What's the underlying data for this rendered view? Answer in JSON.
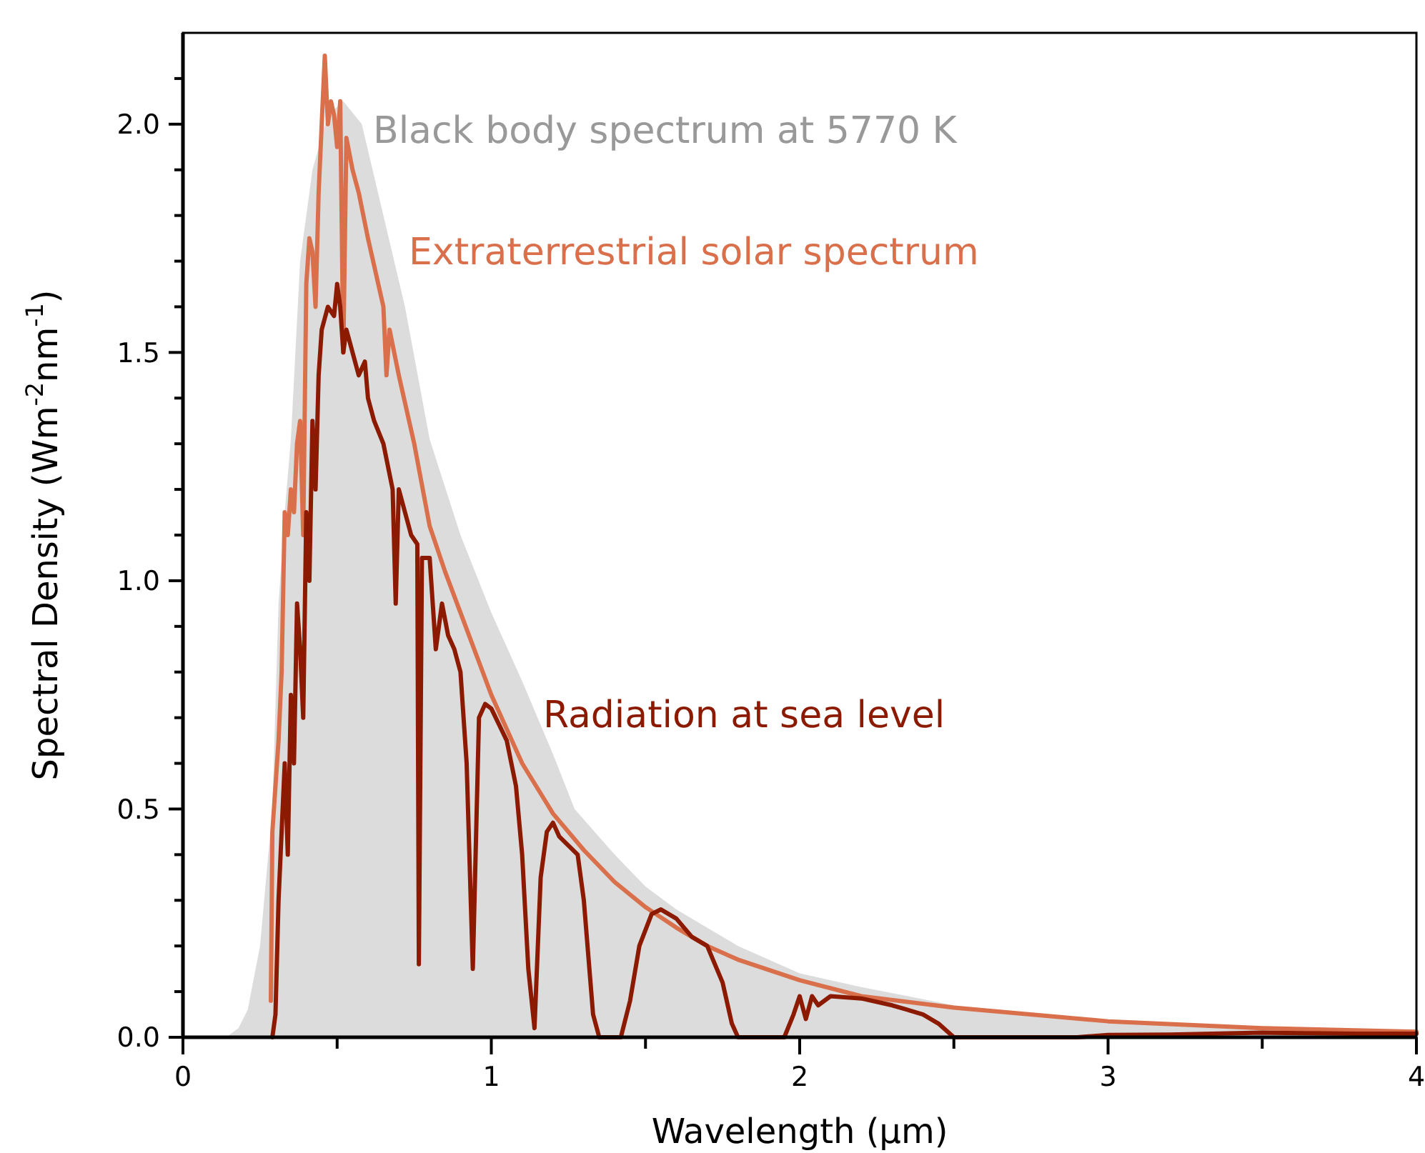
{
  "chart_data": {
    "type": "line",
    "xlabel": "Wavelength (µm)",
    "ylabel": "Spectral Density (Wm$^{-2}$nm$^{-1}$)",
    "xlim": [
      0,
      4
    ],
    "ylim": [
      0,
      2.2
    ],
    "xticks": [
      0,
      {
        "value": 0.5,
        "label": null
      },
      1,
      {
        "value": 1.5,
        "label": null
      },
      2,
      {
        "value": 2.5,
        "label": null
      },
      3,
      {
        "value": 3.5,
        "label": null
      },
      4
    ],
    "yticks": [
      {
        "value": 0,
        "label": "0.0"
      },
      {
        "value": 0.1,
        "label": null
      },
      {
        "value": 0.2,
        "label": null
      },
      {
        "value": 0.3,
        "label": null
      },
      {
        "value": 0.4,
        "label": null
      },
      {
        "value": 0.5,
        "label": "0.5"
      },
      {
        "value": 0.6,
        "label": null
      },
      {
        "value": 0.7,
        "label": null
      },
      {
        "value": 0.8,
        "label": null
      },
      {
        "value": 0.9,
        "label": null
      },
      {
        "value": 1,
        "label": "1.0"
      },
      {
        "value": 1.1,
        "label": null
      },
      {
        "value": 1.2,
        "label": null
      },
      {
        "value": 1.3,
        "label": null
      },
      {
        "value": 1.4,
        "label": null
      },
      {
        "value": 1.5,
        "label": "1.5"
      },
      {
        "value": 1.6,
        "label": null
      },
      {
        "value": 1.7,
        "label": null
      },
      {
        "value": 1.8,
        "label": null
      },
      {
        "value": 1.9,
        "label": null
      },
      {
        "value": 2,
        "label": "2.0"
      },
      {
        "value": 2.1,
        "label": null
      }
    ],
    "grid": false,
    "legend": false,
    "marker": "none",
    "line_style": "solid",
    "series": [
      {
        "name": "Black body spectrum at 5770 K",
        "type": "area",
        "color": "#dcdcdc",
        "x": [
          0.14,
          0.18,
          0.21,
          0.25,
          0.29,
          0.31,
          0.33,
          0.35,
          0.38,
          0.42,
          0.47,
          0.52,
          0.58,
          0.65,
          0.72,
          0.8,
          0.9,
          1.0,
          1.1,
          1.2,
          1.27,
          1.4,
          1.5,
          1.6,
          1.8,
          2.0,
          2.2,
          2.5,
          3.0,
          3.5,
          4.0
        ],
        "values": [
          0,
          0.02,
          0.06,
          0.2,
          0.5,
          0.95,
          1.15,
          1.31,
          1.7,
          1.9,
          2.02,
          2.05,
          2.0,
          1.8,
          1.6,
          1.31,
          1.1,
          0.93,
          0.78,
          0.62,
          0.5,
          0.4,
          0.33,
          0.28,
          0.2,
          0.14,
          0.11,
          0.07,
          0.035,
          0.02,
          0.012
        ]
      },
      {
        "name": "Extraterrestrial solar spectrum",
        "color": "#d9704b",
        "x": [
          0.285,
          0.29,
          0.3,
          0.31,
          0.32,
          0.33,
          0.34,
          0.35,
          0.36,
          0.37,
          0.38,
          0.39,
          0.4,
          0.41,
          0.42,
          0.43,
          0.44,
          0.45,
          0.46,
          0.47,
          0.48,
          0.49,
          0.5,
          0.51,
          0.52,
          0.53,
          0.55,
          0.57,
          0.6,
          0.65,
          0.66,
          0.67,
          0.7,
          0.75,
          0.8,
          0.85,
          0.9,
          1.0,
          1.1,
          1.2,
          1.3,
          1.4,
          1.5,
          1.6,
          1.7,
          1.8,
          2.0,
          2.2,
          2.5,
          3.0,
          3.5,
          4.0
        ],
        "values": [
          0.08,
          0.45,
          0.55,
          0.65,
          0.8,
          1.15,
          1.1,
          1.2,
          1.15,
          1.3,
          1.35,
          1.1,
          1.65,
          1.75,
          1.72,
          1.6,
          1.85,
          2.0,
          2.15,
          2.0,
          2.05,
          2.02,
          1.95,
          2.05,
          1.5,
          1.97,
          1.9,
          1.85,
          1.75,
          1.6,
          1.45,
          1.55,
          1.45,
          1.3,
          1.12,
          1.02,
          0.93,
          0.75,
          0.6,
          0.49,
          0.41,
          0.34,
          0.285,
          0.24,
          0.2,
          0.17,
          0.125,
          0.09,
          0.065,
          0.035,
          0.02,
          0.012
        ]
      },
      {
        "name": "Radiation at sea level",
        "color": "#8b1a00",
        "x": [
          0.29,
          0.3,
          0.31,
          0.32,
          0.33,
          0.34,
          0.35,
          0.36,
          0.37,
          0.38,
          0.39,
          0.4,
          0.41,
          0.42,
          0.43,
          0.44,
          0.45,
          0.47,
          0.49,
          0.5,
          0.51,
          0.52,
          0.53,
          0.55,
          0.57,
          0.59,
          0.6,
          0.62,
          0.65,
          0.68,
          0.69,
          0.7,
          0.72,
          0.74,
          0.76,
          0.765,
          0.775,
          0.8,
          0.82,
          0.84,
          0.86,
          0.88,
          0.9,
          0.92,
          0.94,
          0.96,
          0.98,
          1.0,
          1.05,
          1.08,
          1.1,
          1.12,
          1.14,
          1.16,
          1.18,
          1.2,
          1.22,
          1.25,
          1.28,
          1.3,
          1.33,
          1.35,
          1.4,
          1.42,
          1.45,
          1.48,
          1.52,
          1.55,
          1.6,
          1.65,
          1.7,
          1.75,
          1.78,
          1.8,
          1.95,
          1.98,
          2.0,
          2.02,
          2.04,
          2.06,
          2.1,
          2.2,
          2.3,
          2.4,
          2.45,
          2.5,
          2.9,
          3.0,
          3.2,
          3.5,
          3.8,
          4.0
        ],
        "values": [
          0,
          0.05,
          0.3,
          0.45,
          0.6,
          0.4,
          0.75,
          0.6,
          0.95,
          0.85,
          0.7,
          1.15,
          1.0,
          1.35,
          1.2,
          1.45,
          1.55,
          1.6,
          1.58,
          1.65,
          1.6,
          1.5,
          1.55,
          1.5,
          1.45,
          1.48,
          1.4,
          1.35,
          1.3,
          1.2,
          0.95,
          1.2,
          1.15,
          1.1,
          1.08,
          0.16,
          1.05,
          1.05,
          0.85,
          0.95,
          0.88,
          0.85,
          0.8,
          0.6,
          0.15,
          0.7,
          0.73,
          0.72,
          0.65,
          0.55,
          0.4,
          0.15,
          0.02,
          0.35,
          0.45,
          0.47,
          0.44,
          0.42,
          0.4,
          0.3,
          0.05,
          0,
          0,
          0,
          0.08,
          0.2,
          0.27,
          0.28,
          0.26,
          0.22,
          0.2,
          0.12,
          0.03,
          0,
          0,
          0.05,
          0.09,
          0.04,
          0.09,
          0.07,
          0.09,
          0.085,
          0.07,
          0.05,
          0.03,
          0,
          0,
          0.005,
          0.006,
          0.01,
          0.008,
          0.008
        ]
      }
    ]
  }
}
